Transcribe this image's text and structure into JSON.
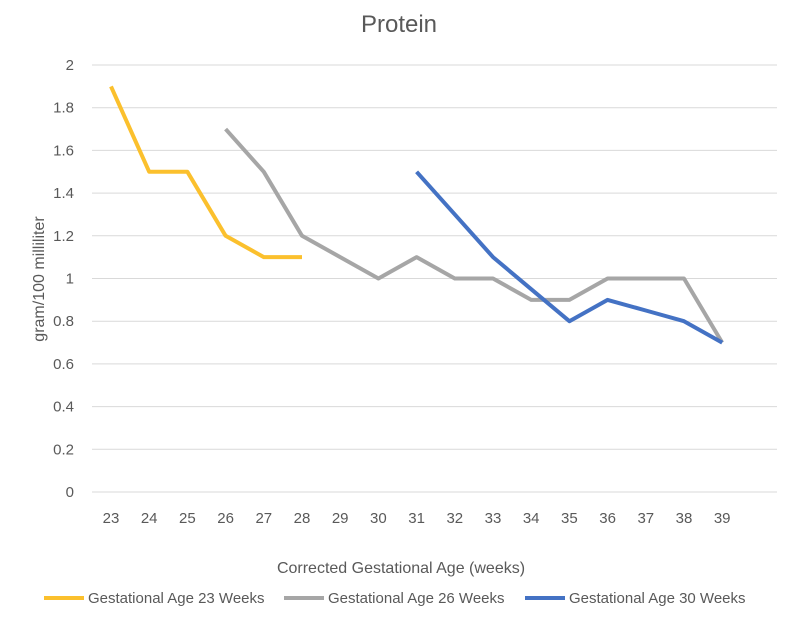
{
  "chart_data": {
    "type": "line",
    "title": "Protein",
    "xlabel": "Corrected Gestational Age (weeks)",
    "ylabel": "gram/100 milliliter",
    "x": [
      23,
      24,
      25,
      26,
      27,
      28,
      29,
      30,
      31,
      32,
      33,
      34,
      35,
      36,
      37,
      38,
      39
    ],
    "x_tick_labels": [
      "23",
      "24",
      "25",
      "26",
      "27",
      "28",
      "29",
      "30",
      "31",
      "32",
      "33",
      "34",
      "35",
      "36",
      "37",
      "38",
      "39"
    ],
    "ylim": [
      0,
      2
    ],
    "y_ticks": [
      0,
      0.2,
      0.4,
      0.6,
      0.8,
      1,
      1.2,
      1.4,
      1.6,
      1.8,
      2
    ],
    "y_tick_labels": [
      "0",
      "0.2",
      "0.4",
      "0.6",
      "0.8",
      "1",
      "1.2",
      "1.4",
      "1.6",
      "1.8",
      "2"
    ],
    "grid": true,
    "legend_position": "bottom",
    "series": [
      {
        "name": "Gestational Age 23 Weeks",
        "color": "#fbc02d",
        "values": [
          1.9,
          1.5,
          1.5,
          1.2,
          1.1,
          1.1,
          null,
          null,
          null,
          null,
          null,
          null,
          null,
          null,
          null,
          null,
          null
        ]
      },
      {
        "name": "Gestational Age 26 Weeks",
        "color": "#a6a6a6",
        "values": [
          null,
          null,
          null,
          1.7,
          1.5,
          1.2,
          1.1,
          1.0,
          1.1,
          1.0,
          1.0,
          0.9,
          0.9,
          1.0,
          1.0,
          1.0,
          0.7
        ]
      },
      {
        "name": "Gestational Age 30 Weeks",
        "color": "#4472c4",
        "values": [
          null,
          null,
          null,
          null,
          null,
          null,
          null,
          null,
          1.5,
          1.3,
          1.1,
          0.95,
          0.8,
          0.9,
          0.85,
          0.8,
          0.7
        ]
      }
    ]
  }
}
